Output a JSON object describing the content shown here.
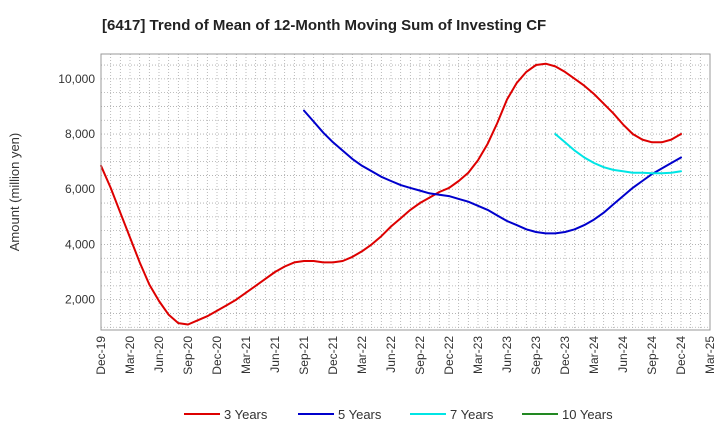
{
  "chart_data": {
    "type": "line",
    "title": "[6417]  Trend of Mean of 12-Month Moving Sum of Investing CF",
    "xlabel": "",
    "ylabel": "Amount (million yen)",
    "x_ticks": [
      "Dec-19",
      "Mar-20",
      "Jun-20",
      "Sep-20",
      "Dec-20",
      "Mar-21",
      "Jun-21",
      "Sep-21",
      "Dec-21",
      "Mar-22",
      "Jun-22",
      "Sep-22",
      "Dec-22",
      "Mar-23",
      "Jun-23",
      "Sep-23",
      "Dec-23",
      "Mar-24",
      "Jun-24",
      "Sep-24",
      "Dec-24",
      "Mar-25"
    ],
    "y_ticks": [
      2000,
      4000,
      6000,
      8000,
      10000
    ],
    "y_tick_labels": [
      "2,000",
      "4,000",
      "6,000",
      "8,000",
      "10,000"
    ],
    "ylim": [
      900,
      10900
    ],
    "grid": true,
    "legend_position": "bottom",
    "series": [
      {
        "name": "3 Years",
        "color": "#dd0000",
        "values": [
          6850,
          6050,
          5150,
          4250,
          3350,
          2550,
          1950,
          1450,
          1150,
          1100,
          1250,
          1400,
          1600,
          1800,
          2000,
          2250,
          2500,
          2750,
          3000,
          3200,
          3350,
          3400,
          3400,
          3350,
          3350,
          3400,
          3550,
          3750,
          4000,
          4300,
          4650,
          4950,
          5250,
          5500,
          5700,
          5900,
          6050,
          6300,
          6600,
          7050,
          7650,
          8400,
          9250,
          9850,
          10250,
          10500,
          10550,
          10450,
          10250,
          10000,
          9750,
          9450,
          9100,
          8750,
          8350,
          8000,
          7800,
          7700,
          7700,
          7800,
          8000
        ]
      },
      {
        "name": "5 Years",
        "color": "#0000cc",
        "values": [
          null,
          null,
          null,
          null,
          null,
          null,
          null,
          null,
          null,
          null,
          null,
          null,
          null,
          null,
          null,
          null,
          null,
          null,
          null,
          null,
          null,
          8850,
          8450,
          8050,
          7700,
          7400,
          7100,
          6850,
          6650,
          6450,
          6300,
          6150,
          6050,
          5950,
          5850,
          5800,
          5750,
          5650,
          5550,
          5400,
          5250,
          5050,
          4850,
          4700,
          4550,
          4450,
          4400,
          4400,
          4450,
          4550,
          4700,
          4900,
          5150,
          5450,
          5750,
          6050,
          6300,
          6550,
          6750,
          6950,
          7150
        ]
      },
      {
        "name": "7 Years",
        "color": "#00e5e5",
        "values": [
          null,
          null,
          null,
          null,
          null,
          null,
          null,
          null,
          null,
          null,
          null,
          null,
          null,
          null,
          null,
          null,
          null,
          null,
          null,
          null,
          null,
          null,
          null,
          null,
          null,
          null,
          null,
          null,
          null,
          null,
          null,
          null,
          null,
          null,
          null,
          null,
          null,
          null,
          null,
          null,
          null,
          null,
          null,
          null,
          null,
          null,
          null,
          8000,
          7700,
          7400,
          7150,
          6950,
          6800,
          6700,
          6650,
          6600,
          6600,
          6580,
          6580,
          6600,
          6650
        ]
      },
      {
        "name": "10 Years",
        "color": "#228822",
        "values": []
      }
    ]
  }
}
